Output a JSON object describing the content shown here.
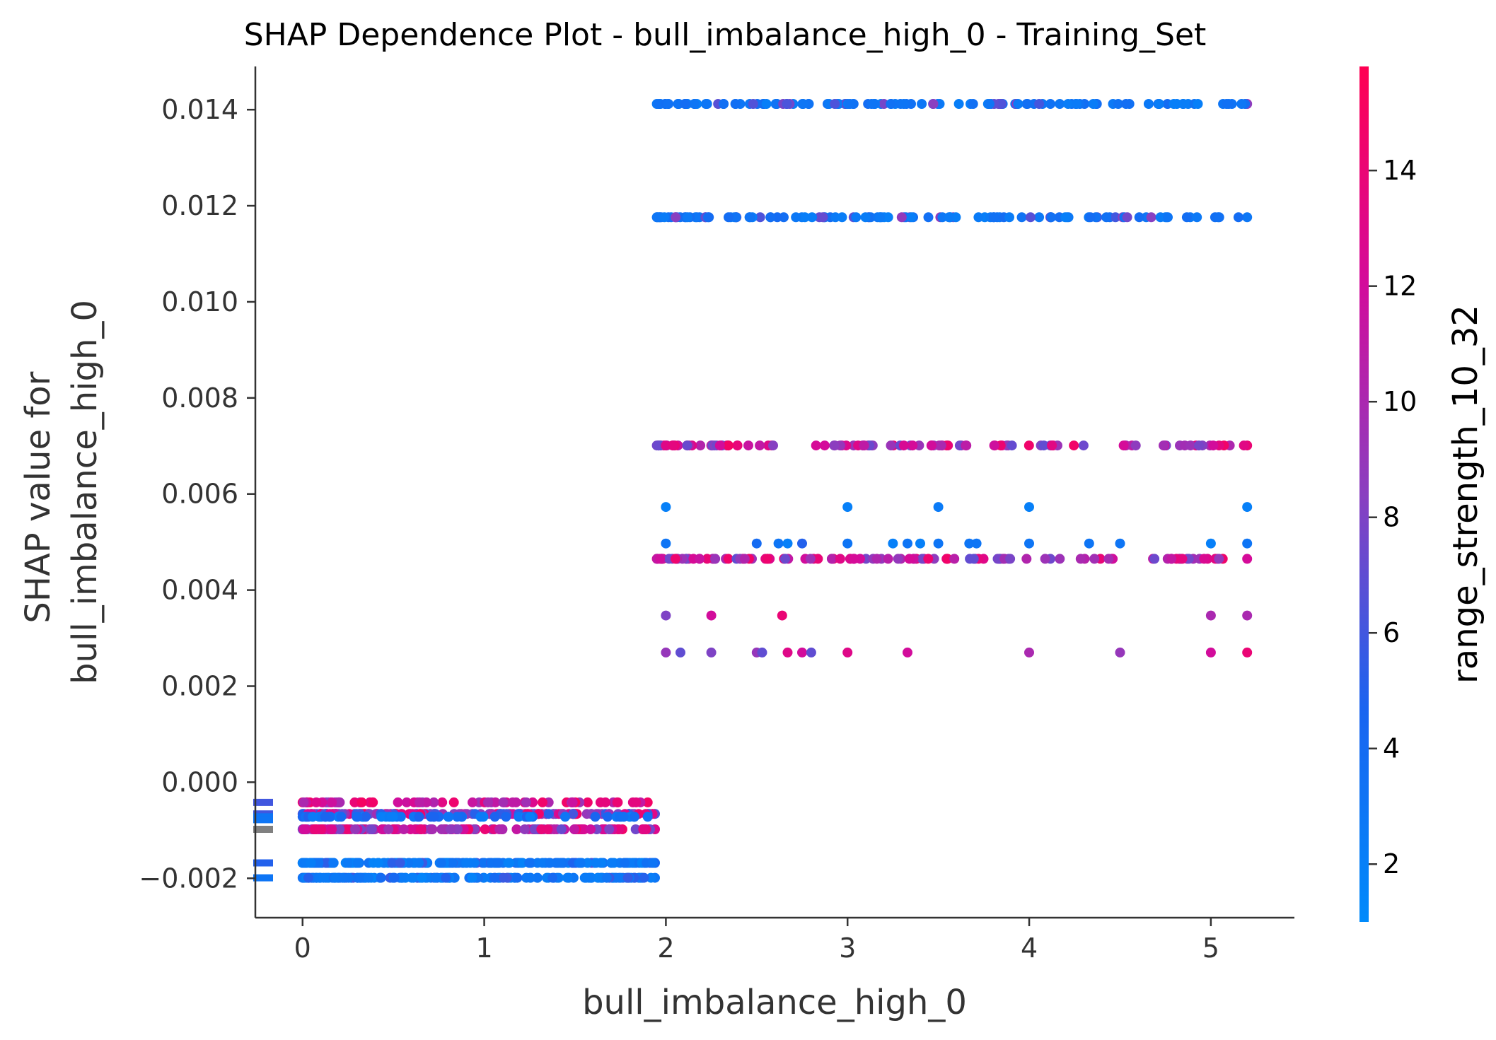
{
  "chart_data": {
    "type": "scatter",
    "title": "SHAP Dependence Plot - bull_imbalance_high_0 - Training_Set",
    "xlabel": "bull_imbalance_high_0",
    "ylabel_lines": [
      "SHAP value for",
      "bull_imbalance_high_0"
    ],
    "xlim": [
      -0.26,
      5.46
    ],
    "ylim": [
      -0.00282,
      0.0149
    ],
    "xticks": [
      0,
      1,
      2,
      3,
      4,
      5
    ],
    "xtick_labels": [
      "0",
      "1",
      "2",
      "3",
      "4",
      "5"
    ],
    "yticks": [
      -0.002,
      0.0,
      0.002,
      0.004,
      0.006,
      0.008,
      0.01,
      0.012,
      0.014
    ],
    "ytick_labels": [
      "−0.002",
      "0.000",
      "0.002",
      "0.004",
      "0.006",
      "0.008",
      "0.010",
      "0.012",
      "0.014"
    ],
    "colorbar": {
      "label": "range_strength_10_32",
      "range": [
        1.0,
        15.8
      ],
      "ticks": [
        2,
        4,
        6,
        8,
        10,
        12,
        14
      ],
      "tick_labels": [
        "2",
        "4",
        "6",
        "8",
        "10",
        "12",
        "14"
      ],
      "low_color": "#008afb",
      "high_color": "#ff0052"
    },
    "grid": false,
    "bands": [
      {
        "y": 0.01412,
        "x_range": [
          1.95,
          5.2
        ],
        "color_range": [
          2,
          4
        ],
        "accent_color_range": [
          6,
          9
        ],
        "n": 130
      },
      {
        "y": 0.01176,
        "x_range": [
          1.95,
          5.2
        ],
        "color_range": [
          2,
          4
        ],
        "accent_color_range": [
          6,
          9
        ],
        "n": 120
      },
      {
        "y": 0.00701,
        "x_range": [
          1.95,
          5.2
        ],
        "color_range": [
          7,
          15
        ],
        "n": 110
      },
      {
        "y": 0.00465,
        "x_range": [
          1.95,
          5.2
        ],
        "color_range": [
          7,
          15
        ],
        "n": 120
      },
      {
        "y": -0.00042,
        "x_range": [
          0.0,
          1.9
        ],
        "color_range": [
          9,
          15
        ],
        "n": 70
      },
      {
        "y": -0.00066,
        "x_range": [
          0.0,
          1.94
        ],
        "color_range": [
          5,
          15
        ],
        "n": 160
      },
      {
        "y": -0.00072,
        "x_range": [
          0.0,
          1.9
        ],
        "color_range": [
          2,
          5
        ],
        "n": 60
      },
      {
        "y": -0.00098,
        "x_range": [
          0.0,
          1.94
        ],
        "color_range": [
          7,
          15
        ],
        "n": 150
      },
      {
        "y": -0.00168,
        "x_range": [
          0.0,
          1.94
        ],
        "color_range": [
          1.5,
          3.5
        ],
        "accent_color_range": [
          4,
          6
        ],
        "n": 170
      },
      {
        "y": -0.00199,
        "x_range": [
          0.0,
          1.94
        ],
        "color_range": [
          1.5,
          3.5
        ],
        "accent_color_range": [
          4,
          6
        ],
        "n": 180
      }
    ],
    "points": [
      {
        "x": 2.0,
        "y": 0.00573,
        "c": 2
      },
      {
        "x": 3.0,
        "y": 0.00573,
        "c": 2
      },
      {
        "x": 3.5,
        "y": 0.00573,
        "c": 2.5
      },
      {
        "x": 4.0,
        "y": 0.00573,
        "c": 2
      },
      {
        "x": 5.2,
        "y": 0.00573,
        "c": 2
      },
      {
        "x": 2.0,
        "y": 0.00497,
        "c": 3
      },
      {
        "x": 2.5,
        "y": 0.00497,
        "c": 4
      },
      {
        "x": 2.62,
        "y": 0.00497,
        "c": 3
      },
      {
        "x": 2.67,
        "y": 0.00497,
        "c": 2
      },
      {
        "x": 2.75,
        "y": 0.00497,
        "c": 5
      },
      {
        "x": 3.0,
        "y": 0.00497,
        "c": 3
      },
      {
        "x": 3.25,
        "y": 0.00497,
        "c": 2
      },
      {
        "x": 3.33,
        "y": 0.00497,
        "c": 3
      },
      {
        "x": 3.4,
        "y": 0.00497,
        "c": 2
      },
      {
        "x": 3.5,
        "y": 0.00497,
        "c": 3
      },
      {
        "x": 3.67,
        "y": 0.00497,
        "c": 3
      },
      {
        "x": 3.71,
        "y": 0.00497,
        "c": 3
      },
      {
        "x": 4.0,
        "y": 0.00497,
        "c": 3
      },
      {
        "x": 4.33,
        "y": 0.00497,
        "c": 3
      },
      {
        "x": 4.5,
        "y": 0.00497,
        "c": 3
      },
      {
        "x": 5.0,
        "y": 0.00497,
        "c": 2
      },
      {
        "x": 5.2,
        "y": 0.00497,
        "c": 3
      },
      {
        "x": 2.0,
        "y": 0.00347,
        "c": 8
      },
      {
        "x": 2.25,
        "y": 0.00347,
        "c": 12
      },
      {
        "x": 2.64,
        "y": 0.00347,
        "c": 14
      },
      {
        "x": 5.0,
        "y": 0.00347,
        "c": 10
      },
      {
        "x": 5.2,
        "y": 0.00347,
        "c": 10
      },
      {
        "x": 2.0,
        "y": 0.0027,
        "c": 9
      },
      {
        "x": 2.08,
        "y": 0.0027,
        "c": 7
      },
      {
        "x": 2.25,
        "y": 0.0027,
        "c": 8
      },
      {
        "x": 2.5,
        "y": 0.0027,
        "c": 9
      },
      {
        "x": 2.53,
        "y": 0.0027,
        "c": 7
      },
      {
        "x": 2.67,
        "y": 0.0027,
        "c": 13
      },
      {
        "x": 2.75,
        "y": 0.0027,
        "c": 12
      },
      {
        "x": 2.8,
        "y": 0.0027,
        "c": 7
      },
      {
        "x": 3.0,
        "y": 0.0027,
        "c": 13
      },
      {
        "x": 3.33,
        "y": 0.0027,
        "c": 12
      },
      {
        "x": 4.0,
        "y": 0.0027,
        "c": 10
      },
      {
        "x": 4.5,
        "y": 0.0027,
        "c": 9
      },
      {
        "x": 5.0,
        "y": 0.0027,
        "c": 12
      },
      {
        "x": 5.2,
        "y": 0.0027,
        "c": 14
      }
    ],
    "missing_value_markers": [
      {
        "y": -0.00042,
        "c": 6
      },
      {
        "y": -0.00066,
        "c": 6
      },
      {
        "y": -0.00072,
        "c": 3
      },
      {
        "y": -0.00078,
        "c": 3
      },
      {
        "y": -0.00098,
        "c": null
      },
      {
        "y": -0.00168,
        "c": 5
      },
      {
        "y": -0.00199,
        "c": 3
      }
    ],
    "missing_color": "#808080"
  }
}
